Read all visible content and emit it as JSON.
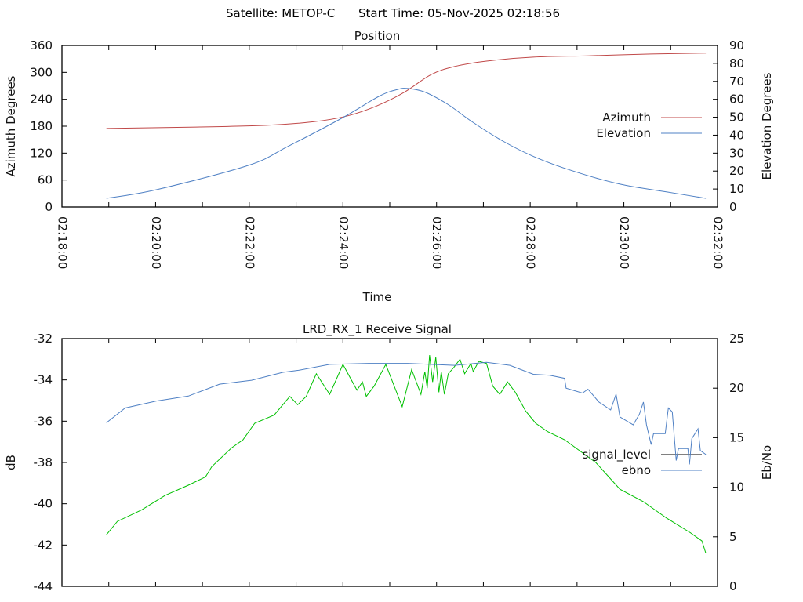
{
  "header": {
    "satellite": "Satellite: METOP-C",
    "start_time": "Start Time: 05-Nov-2025 02:18:56"
  },
  "colors": {
    "azimuth": "#c04848",
    "elevation": "#4f80c4",
    "ebno": "#4f80c4",
    "signal_level_trace": "#00c000",
    "signal_level_key": "#000000"
  },
  "chart_data": [
    {
      "type": "line",
      "title": "Position",
      "xlabel": "Time",
      "ylabel": "Azimuth Degrees",
      "y2label": "Elevation Degrees",
      "x_unit": "seconds after 02:18:00",
      "xlim": [
        0,
        840
      ],
      "xticks": [
        {
          "t": 0,
          "label": "02:18:00"
        },
        {
          "t": 120,
          "label": "02:20:00"
        },
        {
          "t": 240,
          "label": "02:22:00"
        },
        {
          "t": 360,
          "label": "02:24:00"
        },
        {
          "t": 480,
          "label": "02:26:00"
        },
        {
          "t": 600,
          "label": "02:28:00"
        },
        {
          "t": 720,
          "label": "02:30:00"
        },
        {
          "t": 840,
          "label": "02:32:00"
        }
      ],
      "ylim": [
        0,
        360
      ],
      "yticks": [
        "0",
        "60",
        "120",
        "180",
        "240",
        "300",
        "360"
      ],
      "y2lim": [
        0,
        90
      ],
      "y2ticks": [
        "0",
        "10",
        "20",
        "30",
        "40",
        "50",
        "60",
        "70",
        "80",
        "90"
      ],
      "legend": "right",
      "series": [
        {
          "name": "Azimuth",
          "axis": "y",
          "color_key": "azimuth",
          "t": [
            57,
            172,
            262,
            323,
            366,
            403,
            438,
            473,
            503,
            544,
            604,
            674,
            755,
            825
          ],
          "values": [
            175,
            178,
            182,
            190,
            203,
            225,
            255,
            295,
            313,
            325,
            334,
            337,
            341,
            343
          ]
        },
        {
          "name": "Elevation",
          "axis": "y2",
          "color_key": "elevation",
          "t": [
            57,
            121,
            239,
            289,
            360,
            406,
            430,
            444,
            465,
            495,
            525,
            565,
            605,
            655,
            715,
            776,
            825
          ],
          "values": [
            4.8,
            9.6,
            23.2,
            33.6,
            49.8,
            61.6,
            65.5,
            66,
            64,
            57,
            47.6,
            36.7,
            28,
            20,
            12.7,
            8.3,
            4.8
          ]
        }
      ]
    },
    {
      "type": "line",
      "title": "LRD_RX_1 Receive Signal",
      "ylabel": "dB",
      "y2label": "Eb/No",
      "x_unit": "seconds after 02:18:00",
      "xlim": [
        0,
        840
      ],
      "ylim": [
        -44,
        -32
      ],
      "yticks": [
        "-44",
        "-42",
        "-40",
        "-38",
        "-36",
        "-34",
        "-32"
      ],
      "y2lim": [
        0,
        25
      ],
      "y2ticks": [
        "0",
        "5",
        "10",
        "15",
        "20",
        "25"
      ],
      "legend": "right",
      "series": [
        {
          "name": "signal_level",
          "axis": "y",
          "color_key": "signal_level_trace",
          "t": [
            57,
            71,
            102,
            132,
            162,
            184,
            192,
            217,
            232,
            247,
            272,
            292,
            302,
            313,
            326,
            343,
            360,
            378,
            385,
            390,
            400,
            415,
            436,
            448,
            460,
            465,
            468,
            471,
            475,
            479,
            483,
            486,
            490,
            495,
            502,
            510,
            516,
            524,
            527,
            534,
            544,
            552,
            561,
            571,
            581,
            594,
            607,
            622,
            644,
            684,
            715,
            745,
            775,
            805,
            820,
            825
          ],
          "values": [
            -41.5,
            -40.85,
            -40.3,
            -39.6,
            -39.1,
            -38.7,
            -38.2,
            -37.3,
            -36.9,
            -36.1,
            -35.7,
            -34.8,
            -35.2,
            -34.8,
            -33.7,
            -34.7,
            -33.25,
            -34.5,
            -34.1,
            -34.8,
            -34.3,
            -33.25,
            -35.3,
            -33.5,
            -34.7,
            -33.6,
            -34.4,
            -32.8,
            -34.1,
            -32.9,
            -34.6,
            -33.6,
            -34.7,
            -33.7,
            -33.4,
            -33.0,
            -33.7,
            -33.2,
            -33.6,
            -33.1,
            -33.2,
            -34.3,
            -34.7,
            -34.1,
            -34.6,
            -35.5,
            -36.1,
            -36.5,
            -36.9,
            -38.0,
            -39.3,
            -39.9,
            -40.7,
            -41.4,
            -41.8,
            -42.4
          ]
        },
        {
          "name": "ebno",
          "axis": "y2",
          "color_key": "ebno",
          "t": [
            57,
            81,
            121,
            162,
            202,
            243,
            283,
            303,
            343,
            393,
            443,
            503,
            544,
            574,
            604,
            625,
            644,
            646,
            667,
            674,
            688,
            703,
            710,
            715,
            732,
            740,
            745,
            749,
            755,
            758,
            773,
            777,
            782,
            787,
            790,
            802,
            804,
            807,
            815,
            818,
            825
          ],
          "values": [
            16.5,
            18.0,
            18.7,
            19.2,
            20.4,
            20.8,
            21.6,
            21.8,
            22.4,
            22.5,
            22.5,
            22.3,
            22.6,
            22.3,
            21.4,
            21.3,
            21.0,
            20.0,
            19.5,
            19.9,
            18.6,
            17.8,
            19.4,
            17.1,
            16.3,
            17.4,
            18.6,
            16.3,
            14.3,
            15.4,
            15.4,
            18.0,
            17.6,
            12.7,
            13.9,
            13.9,
            12.3,
            14.9,
            15.9,
            13.7,
            13.3
          ]
        }
      ]
    }
  ]
}
